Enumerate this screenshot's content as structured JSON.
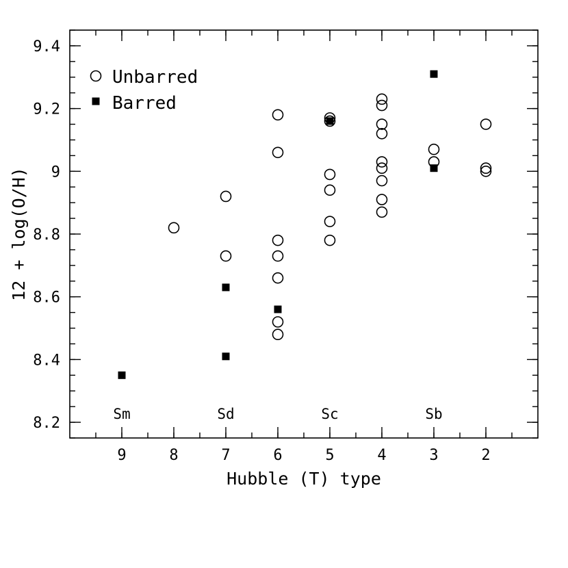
{
  "chart_data": {
    "type": "scatter",
    "title": "",
    "xlabel": "Hubble (T) type",
    "ylabel": "12 + log(O/H)",
    "xlim": [
      10,
      1
    ],
    "ylim": [
      8.15,
      9.45
    ],
    "x_ticks": [
      9,
      8,
      7,
      6,
      5,
      4,
      3,
      2
    ],
    "x_tick_labels": [
      "9",
      "8",
      "7",
      "6",
      "5",
      "4",
      "3",
      "2"
    ],
    "y_ticks": [
      8.2,
      8.4,
      8.6,
      8.8,
      9.0,
      9.2,
      9.4
    ],
    "y_tick_labels": [
      "8.2",
      "8.4",
      "8.6",
      "8.8",
      "9",
      "9.2",
      "9.4"
    ],
    "grid": false,
    "legend": {
      "placement": "top-left",
      "entries": [
        {
          "label": "Unbarred",
          "marker": "open-circle"
        },
        {
          "label": "Barred",
          "marker": "filled-square"
        }
      ]
    },
    "type_labels": [
      {
        "x": 9,
        "text": "Sm"
      },
      {
        "x": 7,
        "text": "Sd"
      },
      {
        "x": 5,
        "text": "Sc"
      },
      {
        "x": 3,
        "text": "Sb"
      }
    ],
    "series": [
      {
        "name": "Unbarred",
        "marker": "open-circle",
        "points": [
          {
            "x": 8,
            "y": 8.82
          },
          {
            "x": 7,
            "y": 8.92
          },
          {
            "x": 7,
            "y": 8.73
          },
          {
            "x": 6,
            "y": 9.18
          },
          {
            "x": 6,
            "y": 9.06
          },
          {
            "x": 6,
            "y": 8.78
          },
          {
            "x": 6,
            "y": 8.73
          },
          {
            "x": 6,
            "y": 8.66
          },
          {
            "x": 6,
            "y": 8.52
          },
          {
            "x": 6,
            "y": 8.48
          },
          {
            "x": 5,
            "y": 9.17
          },
          {
            "x": 5,
            "y": 9.16
          },
          {
            "x": 5,
            "y": 8.99
          },
          {
            "x": 5,
            "y": 8.94
          },
          {
            "x": 5,
            "y": 8.84
          },
          {
            "x": 5,
            "y": 8.78
          },
          {
            "x": 4,
            "y": 9.23
          },
          {
            "x": 4,
            "y": 9.21
          },
          {
            "x": 4,
            "y": 9.15
          },
          {
            "x": 4,
            "y": 9.12
          },
          {
            "x": 4,
            "y": 9.03
          },
          {
            "x": 4,
            "y": 9.01
          },
          {
            "x": 4,
            "y": 8.97
          },
          {
            "x": 4,
            "y": 8.91
          },
          {
            "x": 4,
            "y": 8.87
          },
          {
            "x": 3,
            "y": 9.07
          },
          {
            "x": 3,
            "y": 9.03
          },
          {
            "x": 2,
            "y": 9.15
          },
          {
            "x": 2,
            "y": 9.01
          },
          {
            "x": 2,
            "y": 9.0
          }
        ]
      },
      {
        "name": "Barred",
        "marker": "filled-square",
        "points": [
          {
            "x": 9,
            "y": 8.35
          },
          {
            "x": 7,
            "y": 8.63
          },
          {
            "x": 7,
            "y": 8.41
          },
          {
            "x": 6,
            "y": 8.56
          },
          {
            "x": 5,
            "y": 9.16
          },
          {
            "x": 3,
            "y": 9.31
          },
          {
            "x": 3,
            "y": 9.01
          }
        ]
      }
    ]
  }
}
